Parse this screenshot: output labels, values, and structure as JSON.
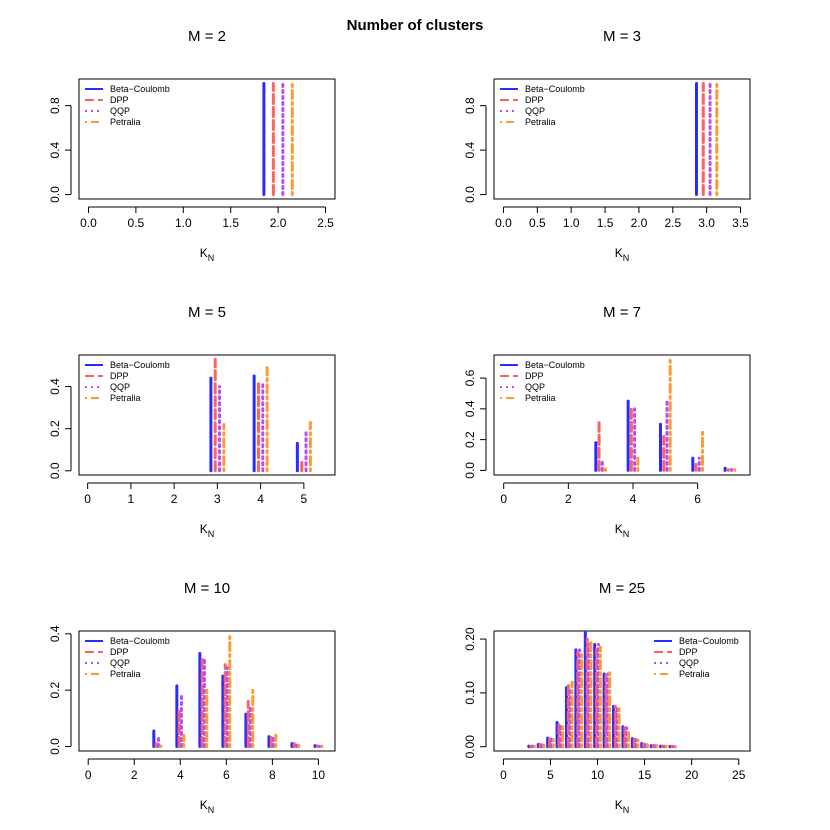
{
  "figure": {
    "title": "Number of clusters"
  },
  "series_styles": [
    {
      "name": "Beta−Coulomb",
      "color": "#2b2bff",
      "dash": "none",
      "width": 3
    },
    {
      "name": "DPP",
      "color": "#ff6262",
      "dash": "9,4",
      "width": 3
    },
    {
      "name": "QQP",
      "color": "#b34dff",
      "dash": "2,4",
      "width": 3
    },
    {
      "name": "Petralia",
      "color": "#ff9933",
      "dash": "2,4,8,4",
      "width": 3
    }
  ],
  "chart_data": [
    {
      "type": "bar",
      "title": "M = 2",
      "xlabel": "K",
      "xlabel_sub": "N",
      "ylabel": "",
      "xlim": [
        -0.1,
        2.6
      ],
      "ylim": [
        -0.04,
        1.04
      ],
      "xticks": [
        0.0,
        0.5,
        1.0,
        1.5,
        2.0,
        2.5
      ],
      "xtick_labels": [
        "0.0",
        "0.5",
        "1.0",
        "1.5",
        "2.0",
        "2.5"
      ],
      "yticks": [
        0.0,
        0.4,
        0.8
      ],
      "ytick_labels": [
        "0.0",
        "0.4",
        "0.8"
      ],
      "legend": "top-left",
      "offset": 0.1,
      "categories": [
        2
      ],
      "series": [
        {
          "name": "Beta−Coulomb",
          "values": [
            1.0
          ]
        },
        {
          "name": "DPP",
          "values": [
            1.0
          ]
        },
        {
          "name": "QQP",
          "values": [
            1.0
          ]
        },
        {
          "name": "Petralia",
          "values": [
            1.0
          ]
        }
      ]
    },
    {
      "type": "bar",
      "title": "M = 3",
      "xlabel": "K",
      "xlabel_sub": "N",
      "ylabel": "",
      "xlim": [
        -0.14,
        3.64
      ],
      "ylim": [
        -0.04,
        1.04
      ],
      "xticks": [
        0.0,
        0.5,
        1.0,
        1.5,
        2.0,
        2.5,
        3.0,
        3.5
      ],
      "xtick_labels": [
        "0.0",
        "0.5",
        "1.0",
        "1.5",
        "2.0",
        "2.5",
        "3.0",
        "3.5"
      ],
      "yticks": [
        0.0,
        0.4,
        0.8
      ],
      "ytick_labels": [
        "0.0",
        "0.4",
        "0.8"
      ],
      "legend": "top-left",
      "offset": 0.1,
      "categories": [
        3
      ],
      "series": [
        {
          "name": "Beta−Coulomb",
          "values": [
            1.0
          ]
        },
        {
          "name": "DPP",
          "values": [
            1.0
          ]
        },
        {
          "name": "QQP",
          "values": [
            1.0
          ]
        },
        {
          "name": "Petralia",
          "values": [
            1.0
          ]
        }
      ]
    },
    {
      "type": "bar",
      "title": "M = 5",
      "xlabel": "K",
      "xlabel_sub": "N",
      "ylabel": "",
      "xlim": [
        -0.2,
        5.72
      ],
      "ylim": [
        -0.02,
        0.55
      ],
      "xticks": [
        0,
        1,
        2,
        3,
        4,
        5
      ],
      "xtick_labels": [
        "0",
        "1",
        "2",
        "3",
        "4",
        "5"
      ],
      "yticks": [
        0.0,
        0.2,
        0.4
      ],
      "ytick_labels": [
        "0.0",
        "0.2",
        "0.4"
      ],
      "legend": "top-left",
      "offset": 0.1,
      "categories": [
        3,
        4,
        5
      ],
      "series": [
        {
          "name": "Beta−Coulomb",
          "values": [
            0.44,
            0.45,
            0.13
          ]
        },
        {
          "name": "DPP",
          "values": [
            0.53,
            0.43,
            0.04
          ]
        },
        {
          "name": "QQP",
          "values": [
            0.4,
            0.42,
            0.18
          ]
        },
        {
          "name": "Petralia",
          "values": [
            0.22,
            0.49,
            0.23
          ]
        }
      ]
    },
    {
      "type": "bar",
      "title": "M = 7",
      "xlabel": "K",
      "xlabel_sub": "N",
      "ylabel": "",
      "xlim": [
        -0.3,
        7.62
      ],
      "ylim": [
        -0.03,
        0.75
      ],
      "xticks": [
        0,
        2,
        4,
        6
      ],
      "xtick_labels": [
        "0",
        "2",
        "4",
        "6"
      ],
      "yticks": [
        0.0,
        0.2,
        0.4,
        0.6
      ],
      "ytick_labels": [
        "0.0",
        "0.2",
        "0.4",
        "0.6"
      ],
      "legend": "top-left",
      "offset": 0.1,
      "categories": [
        3,
        4,
        5,
        6,
        7
      ],
      "series": [
        {
          "name": "Beta−Coulomb",
          "values": [
            0.18,
            0.45,
            0.3,
            0.08,
            0.015
          ]
        },
        {
          "name": "DPP",
          "values": [
            0.31,
            0.42,
            0.22,
            0.04,
            0.005
          ]
        },
        {
          "name": "QQP",
          "values": [
            0.07,
            0.4,
            0.45,
            0.08,
            0.005
          ]
        },
        {
          "name": "Petralia",
          "values": [
            0.01,
            0.08,
            0.72,
            0.25,
            0.005
          ]
        }
      ]
    },
    {
      "type": "bar",
      "title": "M = 10",
      "xlabel": "K",
      "xlabel_sub": "N",
      "ylabel": "",
      "xlim": [
        -0.4,
        10.72
      ],
      "ylim": [
        -0.016,
        0.41
      ],
      "xticks": [
        0,
        2,
        4,
        6,
        8,
        10
      ],
      "xtick_labels": [
        "0",
        "2",
        "4",
        "6",
        "8",
        "10"
      ],
      "yticks": [
        0.0,
        0.2,
        0.4
      ],
      "ytick_labels": [
        "0.0",
        "0.2",
        "0.4"
      ],
      "legend": "top-left",
      "offset": 0.1,
      "categories": [
        3,
        4,
        5,
        6,
        7,
        8,
        9,
        10
      ],
      "series": [
        {
          "name": "Beta−Coulomb",
          "values": [
            0.055,
            0.215,
            0.33,
            0.25,
            0.115,
            0.035,
            0.01,
            0.003
          ]
        },
        {
          "name": "DPP",
          "values": [
            0.01,
            0.13,
            0.32,
            0.29,
            0.16,
            0.045,
            0.01,
            0.002
          ]
        },
        {
          "name": "QQP",
          "values": [
            0.035,
            0.18,
            0.31,
            0.28,
            0.14,
            0.04,
            0.005,
            0.001
          ]
        },
        {
          "name": "Petralia",
          "values": [
            0.002,
            0.04,
            0.21,
            0.39,
            0.2,
            0.04,
            0.003,
            0.001
          ]
        }
      ]
    },
    {
      "type": "bar",
      "title": "M = 25",
      "xlabel": "K",
      "xlabel_sub": "N",
      "ylabel": "",
      "xlim": [
        -1.0,
        26.2
      ],
      "ylim": [
        -0.008,
        0.215
      ],
      "xticks": [
        0,
        5,
        10,
        15,
        20,
        25
      ],
      "xtick_labels": [
        "0",
        "5",
        "10",
        "15",
        "20",
        "25"
      ],
      "yticks": [
        0.0,
        0.1,
        0.2
      ],
      "ytick_labels": [
        "0.00",
        "0.10",
        "0.20"
      ],
      "legend": "top-right",
      "offset": 0.2,
      "categories": [
        3,
        4,
        5,
        6,
        7,
        8,
        9,
        10,
        11,
        12,
        13,
        14,
        15,
        16,
        17,
        18
      ],
      "series": [
        {
          "name": "Beta−Coulomb",
          "values": [
            0.001,
            0.004,
            0.016,
            0.045,
            0.11,
            0.18,
            0.215,
            0.19,
            0.135,
            0.075,
            0.037,
            0.015,
            0.006,
            0.002,
            0.001,
            0.0005
          ]
        },
        {
          "name": "DPP",
          "values": [
            0.001,
            0.004,
            0.014,
            0.048,
            0.12,
            0.175,
            0.2,
            0.18,
            0.13,
            0.075,
            0.035,
            0.014,
            0.005,
            0.002,
            0.001,
            0.0005
          ]
        },
        {
          "name": "QQP",
          "values": [
            0.001,
            0.003,
            0.014,
            0.042,
            0.105,
            0.18,
            0.19,
            0.19,
            0.135,
            0.07,
            0.035,
            0.013,
            0.005,
            0.002,
            0.0008,
            0.0003
          ]
        },
        {
          "name": "Petralia",
          "values": [
            0.0008,
            0.003,
            0.013,
            0.043,
            0.12,
            0.175,
            0.2,
            0.185,
            0.14,
            0.075,
            0.03,
            0.012,
            0.005,
            0.002,
            0.0008,
            0.0003
          ]
        }
      ]
    }
  ]
}
